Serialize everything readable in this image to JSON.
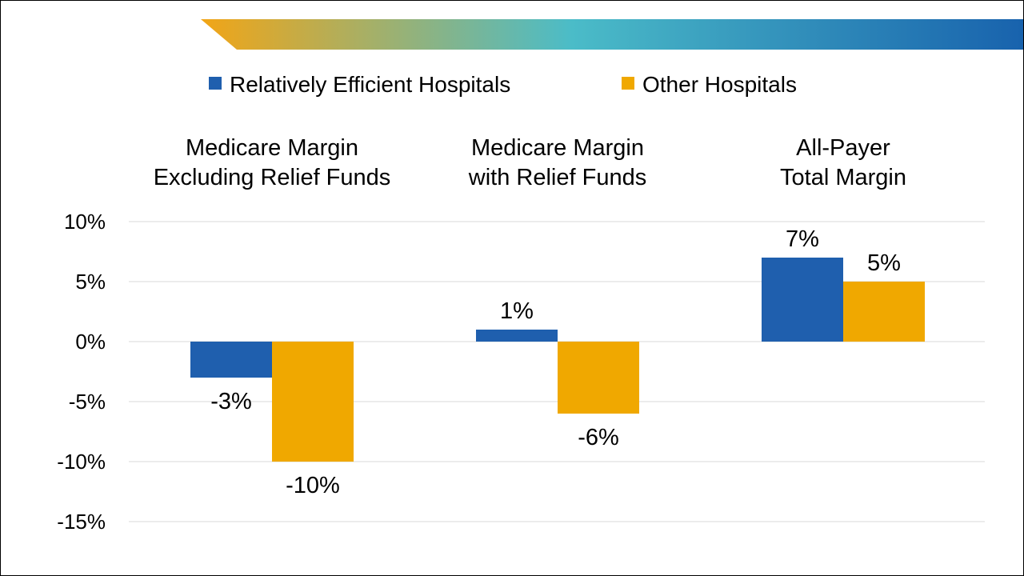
{
  "colors": {
    "series_1": "#1f5fae",
    "series_2": "#f0a800",
    "grid": "#d9d9d9",
    "banner_stops": [
      "#f2a516",
      "#4bbcc8",
      "#1862ad"
    ]
  },
  "chart_data": {
    "type": "bar",
    "categories": [
      [
        "Medicare Margin",
        "Excluding Relief Funds"
      ],
      [
        "Medicare Margin",
        "with Relief Funds"
      ],
      [
        "All-Payer",
        "Total Margin"
      ]
    ],
    "series": [
      {
        "name": "Relatively Efficient Hospitals",
        "values": [
          -3,
          1,
          7
        ],
        "labels": [
          "-3%",
          "1%",
          "7%"
        ]
      },
      {
        "name": "Other Hospitals",
        "values": [
          -10,
          -6,
          5
        ],
        "labels": [
          "-10%",
          "-6%",
          "5%"
        ]
      }
    ],
    "ylim": [
      -15,
      10
    ],
    "yticks": [
      10,
      5,
      0,
      -5,
      -10,
      -15
    ],
    "ytick_labels": [
      "10%",
      "5%",
      "0%",
      "-5%",
      "-10%",
      "-15%"
    ],
    "grid": true,
    "legend_position": "top-center",
    "title": "",
    "xlabel": "",
    "ylabel": ""
  }
}
